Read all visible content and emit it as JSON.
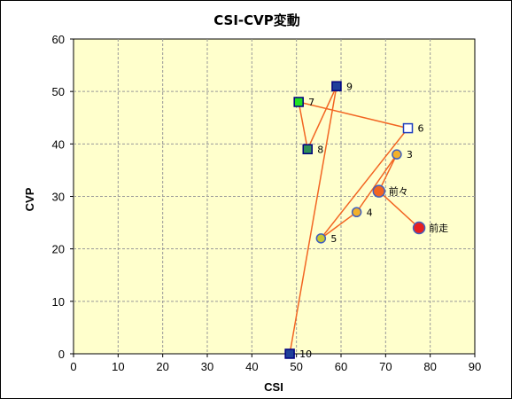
{
  "chart_data": {
    "type": "scatter",
    "title": "CSI-CVP変動",
    "xlabel": "CSI",
    "ylabel": "CVP",
    "xlim": [
      0,
      90
    ],
    "ylim": [
      0,
      60
    ],
    "x_ticks": [
      "0",
      "10",
      "20",
      "30",
      "40",
      "50",
      "60",
      "70",
      "80",
      "90"
    ],
    "y_ticks": [
      "0",
      "10",
      "20",
      "30",
      "40",
      "50",
      "60"
    ],
    "grid": true,
    "plot_background": "#ffffcc",
    "line_color": "#f26522",
    "points": [
      {
        "label": "10",
        "x": 48.5,
        "y": 0,
        "marker": "square",
        "fill": "#1f3f99",
        "stroke": "#000080"
      },
      {
        "label": "9",
        "x": 59,
        "y": 51,
        "marker": "square",
        "fill": "#1f3f99",
        "stroke": "#000080"
      },
      {
        "label": "8",
        "x": 52.5,
        "y": 39,
        "marker": "square",
        "fill": "#2f8f57",
        "stroke": "#000080"
      },
      {
        "label": "7",
        "x": 50.5,
        "y": 48,
        "marker": "square",
        "fill": "#22e022",
        "stroke": "#000080"
      },
      {
        "label": "6",
        "x": 75,
        "y": 43,
        "marker": "square",
        "fill": "#ffffff",
        "stroke": "#1f3fbf"
      },
      {
        "label": "5",
        "x": 55.5,
        "y": 22,
        "marker": "circle",
        "fill": "#c8c832",
        "stroke": "#3f5fbf"
      },
      {
        "label": "4",
        "x": 63.5,
        "y": 27,
        "marker": "circle",
        "fill": "#f2b02a",
        "stroke": "#3f5fbf"
      },
      {
        "label": "3",
        "x": 72.5,
        "y": 38,
        "marker": "circle",
        "fill": "#f2b02a",
        "stroke": "#3f5fbf"
      },
      {
        "label": "前々",
        "x": 68.5,
        "y": 31,
        "marker": "circle",
        "fill": "#f26522",
        "stroke": "#3f5fbf"
      },
      {
        "label": "前走",
        "x": 77.5,
        "y": 24,
        "marker": "circle",
        "fill": "#e81f1f",
        "stroke": "#3f5fbf"
      }
    ]
  }
}
